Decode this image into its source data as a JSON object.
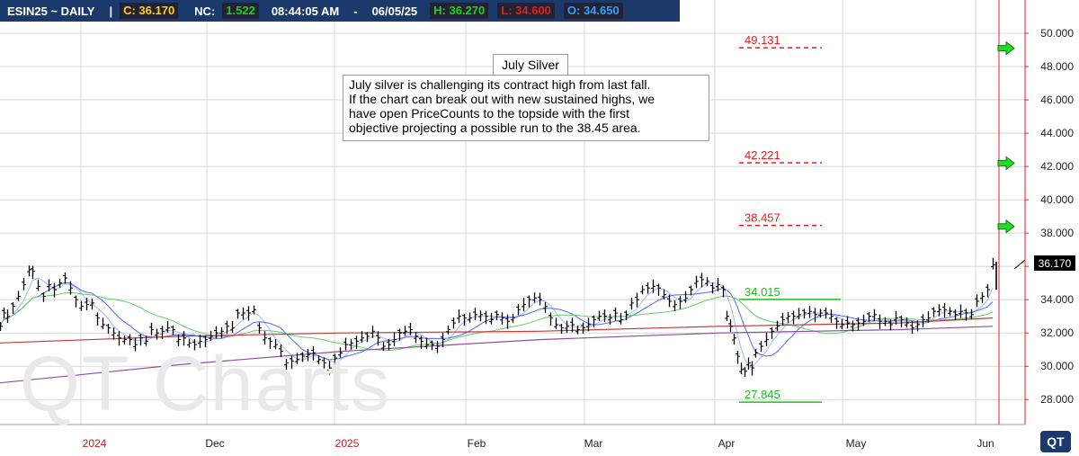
{
  "header": {
    "symbol": "ESIN25 ~ DAILY",
    "sep": "|",
    "close": "C: 36.170",
    "netchange_label": "NC:",
    "netchange_value": "1.522",
    "time": "08:44:05 AM",
    "dash": "-",
    "date": "06/05/25",
    "high": "H: 36.270",
    "low": "L: 34.600",
    "open": "O: 34.650"
  },
  "annotation": {
    "title": "July Silver",
    "lines": [
      "July silver is challenging its contract high from last fall.",
      "If the chart can break out with new sustained highs, we",
      "have open PriceCounts to the topside with the first",
      "objective projecting a possible run to the 38.45 area."
    ]
  },
  "watermark": "QT Charts",
  "logo": "QT",
  "colors": {
    "header_bg": "#1b3a6b",
    "close": "#ffd21f",
    "netchange": "#1fd11f",
    "high": "#1fd11f",
    "low": "#e02020",
    "open": "#2ea3ff",
    "red_levels": "#e02020",
    "green_levels": "#22bb22",
    "arrow": "#22dd22",
    "vline": "#e02020"
  },
  "chart_data": {
    "type": "bar",
    "subtype": "ohlc",
    "title": "",
    "xlabel": "",
    "ylabel": "",
    "ylim": [
      26.5,
      52
    ],
    "y_ticks": [
      "28.000",
      "30.000",
      "32.000",
      "34.000",
      "36.000",
      "38.000",
      "40.000",
      "42.000",
      "44.000",
      "46.000",
      "48.000",
      "50.000"
    ],
    "x_labels": [
      "2024",
      "Dec",
      "2025",
      "Feb",
      "Mar",
      "Apr",
      "May",
      "Jun"
    ],
    "last_price_label": "36.170",
    "levels": [
      {
        "label": "49.131",
        "value": 49.131,
        "color": "red",
        "style": "dashed"
      },
      {
        "label": "42.221",
        "value": 42.221,
        "color": "red",
        "style": "dashed"
      },
      {
        "label": "38.457",
        "value": 38.457,
        "color": "red",
        "style": "dashed"
      },
      {
        "label": "34.015",
        "value": 34.015,
        "color": "green",
        "style": "solid"
      },
      {
        "label": "27.845",
        "value": 27.845,
        "color": "green",
        "style": "solid"
      }
    ],
    "arrows_at": [
      49.1,
      42.2,
      38.4
    ],
    "price_path": [
      [
        0,
        32.4
      ],
      [
        4,
        33.2
      ],
      [
        8,
        33.0
      ],
      [
        14,
        33.6
      ],
      [
        20,
        34.2
      ],
      [
        26,
        34.9
      ],
      [
        32,
        35.8
      ],
      [
        36,
        35.7
      ],
      [
        42,
        34.8
      ],
      [
        48,
        34.2
      ],
      [
        54,
        34.9
      ],
      [
        60,
        34.6
      ],
      [
        66,
        35.0
      ],
      [
        72,
        35.3
      ],
      [
        78,
        34.7
      ],
      [
        84,
        34.0
      ],
      [
        90,
        33.6
      ],
      [
        96,
        33.7
      ],
      [
        102,
        33.8
      ],
      [
        108,
        32.9
      ],
      [
        114,
        32.5
      ],
      [
        120,
        32.3
      ],
      [
        126,
        32.0
      ],
      [
        132,
        31.7
      ],
      [
        138,
        31.6
      ],
      [
        144,
        31.6
      ],
      [
        150,
        31.3
      ],
      [
        156,
        31.7
      ],
      [
        162,
        31.5
      ],
      [
        168,
        32.2
      ],
      [
        174,
        32.0
      ],
      [
        180,
        32.1
      ],
      [
        186,
        32.3
      ],
      [
        192,
        32.2
      ],
      [
        198,
        31.6
      ],
      [
        204,
        31.7
      ],
      [
        210,
        31.4
      ],
      [
        216,
        31.3
      ],
      [
        222,
        31.5
      ],
      [
        228,
        31.6
      ],
      [
        234,
        31.8
      ],
      [
        240,
        32.0
      ],
      [
        246,
        32.1
      ],
      [
        252,
        32.4
      ],
      [
        258,
        32.3
      ],
      [
        264,
        33.2
      ],
      [
        270,
        33.2
      ],
      [
        276,
        33.2
      ],
      [
        282,
        33.4
      ],
      [
        288,
        32.3
      ],
      [
        294,
        31.7
      ],
      [
        300,
        31.5
      ],
      [
        306,
        31.3
      ],
      [
        312,
        30.9
      ],
      [
        318,
        30.2
      ],
      [
        324,
        30.3
      ],
      [
        330,
        30.4
      ],
      [
        336,
        30.6
      ],
      [
        342,
        30.7
      ],
      [
        348,
        30.8
      ],
      [
        354,
        30.4
      ],
      [
        360,
        30.2
      ],
      [
        366,
        29.9
      ],
      [
        372,
        30.5
      ],
      [
        378,
        30.8
      ],
      [
        384,
        31.3
      ],
      [
        390,
        31.4
      ],
      [
        396,
        31.5
      ],
      [
        402,
        31.7
      ],
      [
        408,
        31.8
      ],
      [
        414,
        32.1
      ],
      [
        420,
        31.7
      ],
      [
        426,
        31.2
      ],
      [
        432,
        31.3
      ],
      [
        438,
        31.6
      ],
      [
        444,
        32.0
      ],
      [
        450,
        32.1
      ],
      [
        456,
        32.2
      ],
      [
        462,
        31.8
      ],
      [
        468,
        31.5
      ],
      [
        474,
        31.3
      ],
      [
        480,
        31.3
      ],
      [
        486,
        31.2
      ],
      [
        492,
        31.6
      ],
      [
        498,
        32.2
      ],
      [
        504,
        32.6
      ],
      [
        510,
        33.0
      ],
      [
        516,
        32.9
      ],
      [
        522,
        32.9
      ],
      [
        528,
        33.1
      ],
      [
        534,
        33.1
      ],
      [
        540,
        33.0
      ],
      [
        546,
        32.8
      ],
      [
        552,
        33.1
      ],
      [
        558,
        32.9
      ],
      [
        564,
        32.7
      ],
      [
        570,
        32.9
      ],
      [
        576,
        33.4
      ],
      [
        582,
        33.7
      ],
      [
        588,
        34.0
      ],
      [
        594,
        34.1
      ],
      [
        600,
        34.0
      ],
      [
        606,
        33.6
      ],
      [
        612,
        32.9
      ],
      [
        618,
        32.5
      ],
      [
        624,
        32.3
      ],
      [
        630,
        32.4
      ],
      [
        636,
        32.5
      ],
      [
        642,
        32.2
      ],
      [
        648,
        32.3
      ],
      [
        654,
        32.5
      ],
      [
        660,
        32.8
      ],
      [
        666,
        33.0
      ],
      [
        672,
        33.0
      ],
      [
        678,
        32.9
      ],
      [
        684,
        33.2
      ],
      [
        690,
        32.8
      ],
      [
        696,
        33.1
      ],
      [
        702,
        33.8
      ],
      [
        708,
        34.0
      ],
      [
        714,
        34.6
      ],
      [
        720,
        34.7
      ],
      [
        726,
        34.8
      ],
      [
        732,
        34.7
      ],
      [
        738,
        34.3
      ],
      [
        744,
        33.9
      ],
      [
        750,
        33.7
      ],
      [
        756,
        33.9
      ],
      [
        762,
        34.1
      ],
      [
        768,
        34.6
      ],
      [
        774,
        35.1
      ],
      [
        780,
        35.2
      ],
      [
        786,
        35.1
      ],
      [
        792,
        34.7
      ],
      [
        798,
        34.9
      ],
      [
        804,
        34.6
      ],
      [
        808,
        33.0
      ],
      [
        812,
        32.4
      ],
      [
        816,
        31.7
      ],
      [
        820,
        30.6
      ],
      [
        824,
        29.8
      ],
      [
        828,
        29.7
      ],
      [
        832,
        30.2
      ],
      [
        836,
        29.9
      ],
      [
        840,
        30.8
      ],
      [
        846,
        31.2
      ],
      [
        852,
        31.6
      ],
      [
        858,
        32.1
      ],
      [
        864,
        32.4
      ],
      [
        870,
        32.8
      ],
      [
        876,
        33.0
      ],
      [
        882,
        33.0
      ],
      [
        888,
        33.1
      ],
      [
        894,
        33.2
      ],
      [
        900,
        33.3
      ],
      [
        906,
        33.1
      ],
      [
        912,
        33.2
      ],
      [
        918,
        33.2
      ],
      [
        924,
        33.0
      ],
      [
        930,
        32.7
      ],
      [
        936,
        32.5
      ],
      [
        942,
        32.6
      ],
      [
        948,
        32.5
      ],
      [
        954,
        32.6
      ],
      [
        960,
        32.7
      ],
      [
        966,
        33.0
      ],
      [
        972,
        33.1
      ],
      [
        978,
        32.7
      ],
      [
        984,
        32.7
      ],
      [
        990,
        32.5
      ],
      [
        996,
        32.9
      ],
      [
        1002,
        32.8
      ],
      [
        1008,
        32.6
      ],
      [
        1014,
        32.3
      ],
      [
        1020,
        32.5
      ],
      [
        1026,
        32.8
      ],
      [
        1032,
        32.9
      ],
      [
        1038,
        33.3
      ],
      [
        1044,
        33.4
      ],
      [
        1050,
        33.4
      ],
      [
        1056,
        33.3
      ],
      [
        1062,
        33.1
      ],
      [
        1068,
        33.3
      ],
      [
        1074,
        33.2
      ],
      [
        1080,
        33.1
      ],
      [
        1086,
        33.9
      ],
      [
        1092,
        34.2
      ],
      [
        1098,
        34.6
      ],
      [
        1104,
        36.1
      ]
    ]
  }
}
